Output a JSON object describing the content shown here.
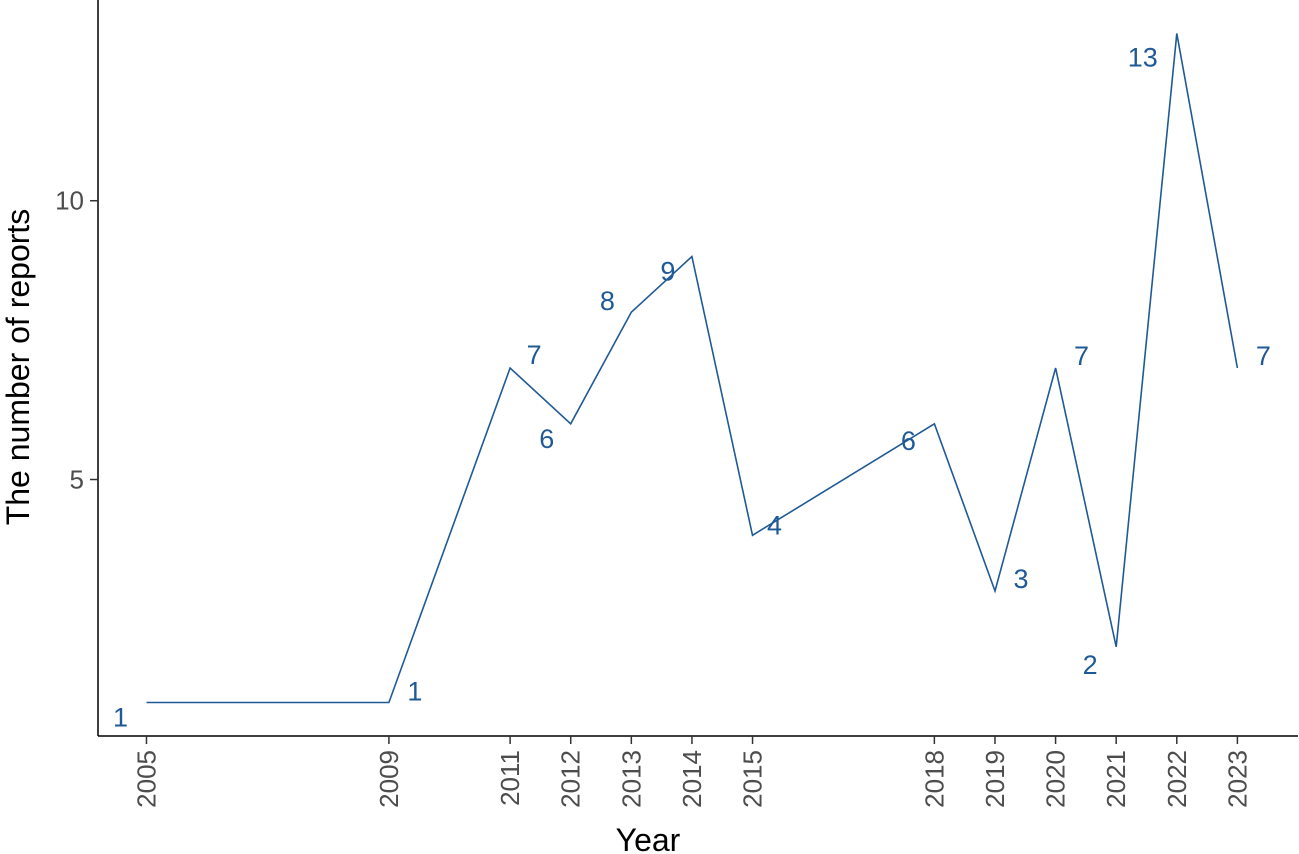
{
  "chart_data": {
    "type": "line",
    "title": "",
    "xlabel": "Year",
    "ylabel": "The number of reports",
    "x": [
      2005,
      2009,
      2011,
      2012,
      2013,
      2014,
      2015,
      2018,
      2019,
      2020,
      2021,
      2022,
      2023
    ],
    "x_tick_labels": [
      "2005",
      "2009",
      "2011",
      "2012",
      "2013",
      "2014",
      "2015",
      "2018",
      "2019",
      "2020",
      "2021",
      "2022",
      "2023"
    ],
    "y_ticks": [
      5,
      10
    ],
    "xlim": [
      2004.2,
      2024.0
    ],
    "ylim": [
      0.4,
      13.6
    ],
    "grid": false,
    "series": [
      {
        "values": [
          1,
          1,
          7,
          6,
          8,
          9,
          4,
          6,
          3,
          7,
          2,
          13,
          7
        ],
        "color": "#1f5a96"
      }
    ],
    "data_labels": [
      "1",
      "1",
      "7",
      "6",
      "8",
      "9",
      "4",
      "6",
      "3",
      "7",
      "2",
      "13",
      "7"
    ]
  }
}
